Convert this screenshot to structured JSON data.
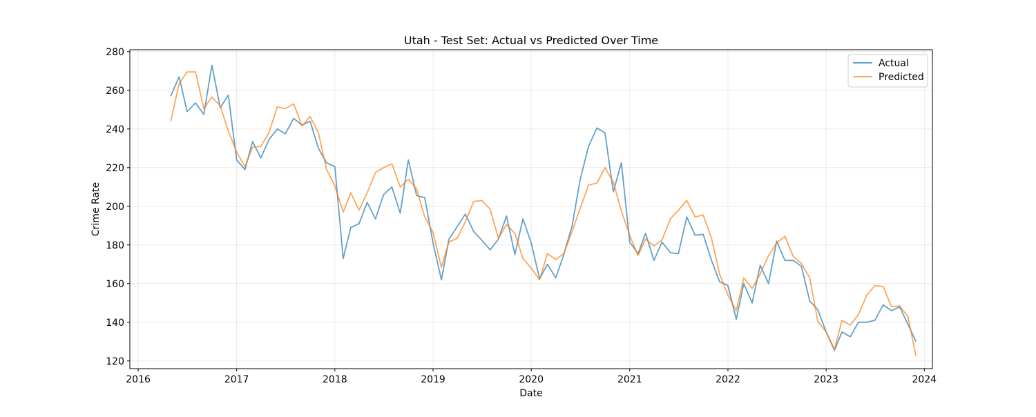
{
  "chart_data": {
    "type": "line",
    "title": "Utah - Test Set: Actual vs Predicted Over Time",
    "xlabel": "Date",
    "ylabel": "Crime Rate",
    "xlim": [
      "2015-12-01",
      "2024-01-31"
    ],
    "ylim": [
      116,
      281
    ],
    "x_ticks": [
      "2016",
      "2017",
      "2018",
      "2019",
      "2020",
      "2021",
      "2022",
      "2023",
      "2024"
    ],
    "y_ticks": [
      120,
      140,
      160,
      180,
      200,
      220,
      240,
      260,
      280
    ],
    "grid": true,
    "legend_position": "upper right",
    "x": [
      "2016-05",
      "2016-06",
      "2016-07",
      "2016-08",
      "2016-09",
      "2016-10",
      "2016-11",
      "2016-12",
      "2017-01",
      "2017-02",
      "2017-03",
      "2017-04",
      "2017-05",
      "2017-06",
      "2017-07",
      "2017-08",
      "2017-09",
      "2017-10",
      "2017-11",
      "2017-12",
      "2018-01",
      "2018-02",
      "2018-03",
      "2018-04",
      "2018-05",
      "2018-06",
      "2018-07",
      "2018-08",
      "2018-09",
      "2018-10",
      "2018-11",
      "2018-12",
      "2019-01",
      "2019-02",
      "2019-03",
      "2019-04",
      "2019-05",
      "2019-06",
      "2019-07",
      "2019-08",
      "2019-09",
      "2019-10",
      "2019-11",
      "2019-12",
      "2020-01",
      "2020-02",
      "2020-03",
      "2020-04",
      "2020-05",
      "2020-06",
      "2020-07",
      "2020-08",
      "2020-09",
      "2020-10",
      "2020-11",
      "2020-12",
      "2021-01",
      "2021-02",
      "2021-03",
      "2021-04",
      "2021-05",
      "2021-06",
      "2021-07",
      "2021-08",
      "2021-09",
      "2021-10",
      "2021-11",
      "2021-12",
      "2022-01",
      "2022-02",
      "2022-03",
      "2022-04",
      "2022-05",
      "2022-06",
      "2022-07",
      "2022-08",
      "2022-09",
      "2022-10",
      "2022-11",
      "2022-12",
      "2023-01",
      "2023-02",
      "2023-03",
      "2023-04",
      "2023-05",
      "2023-06",
      "2023-07",
      "2023-08",
      "2023-09",
      "2023-10",
      "2023-11",
      "2023-12"
    ],
    "series": [
      {
        "name": "Actual",
        "color": "#1f77b4",
        "values": [
          257,
          267,
          249,
          253.5,
          247.5,
          273,
          251,
          257.5,
          224,
          219,
          233.5,
          225,
          234.5,
          240,
          237.5,
          245.5,
          242,
          244,
          230,
          222.5,
          220.5,
          173,
          189,
          191,
          202,
          193.5,
          206,
          210,
          196.5,
          224,
          205.5,
          204.5,
          181,
          162,
          183,
          189.5,
          196,
          187,
          182.5,
          177.5,
          183,
          195,
          175,
          193.5,
          181,
          162.5,
          170,
          163,
          175,
          190,
          214,
          231,
          240.5,
          238,
          207.5,
          222.5,
          181.5,
          175.5,
          186,
          172,
          181.5,
          176,
          175.5,
          194.5,
          185,
          185.5,
          172,
          161,
          159,
          141.5,
          160,
          150,
          169.5,
          160,
          182,
          172,
          172,
          169,
          151,
          146.5,
          135,
          125.5,
          135,
          132.5,
          140,
          140,
          141,
          149,
          146,
          148,
          139,
          130
        ]
      },
      {
        "name": "Predicted",
        "color": "#ff7f0e",
        "values": [
          244,
          263.5,
          269.5,
          269.5,
          250.5,
          256.5,
          252,
          239,
          228,
          220.5,
          230.5,
          231,
          238,
          251.5,
          250.5,
          253,
          241.5,
          246.5,
          238,
          219,
          210.5,
          197,
          207,
          198,
          207,
          217.5,
          220,
          222,
          210,
          214,
          209,
          194.5,
          186.5,
          168.5,
          181.5,
          183.5,
          192,
          202.5,
          203,
          198.5,
          183.5,
          190.5,
          186,
          173,
          168,
          162,
          175.5,
          172.5,
          175.5,
          187,
          199,
          211,
          212,
          220,
          212.5,
          197.5,
          185,
          174.5,
          183,
          179.5,
          182.5,
          193.5,
          198,
          203,
          194.5,
          195.5,
          183.5,
          165,
          154,
          146,
          163,
          157.5,
          165,
          174.5,
          181,
          184.5,
          174,
          170.5,
          163,
          140.5,
          135,
          126,
          141,
          138.5,
          144,
          154,
          159,
          158.5,
          148,
          148.5,
          143,
          122.5
        ]
      }
    ]
  }
}
